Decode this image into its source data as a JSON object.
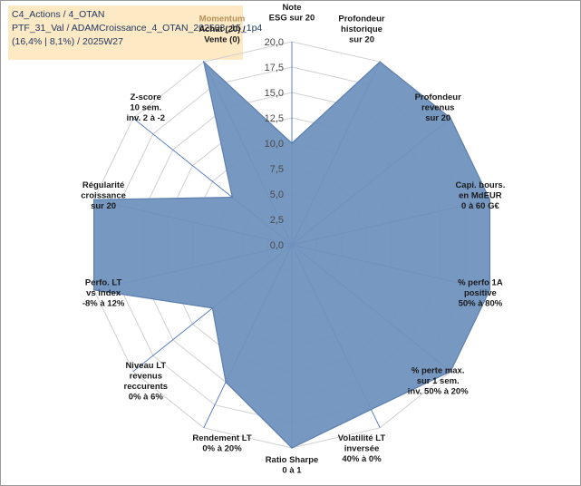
{
  "header": {
    "line1": "C4_Actions / 4_OTAN",
    "line2": "PTF_31_Val / ADAMCroissance_4_OTAN_202503_15_1p4",
    "line3": "(16,4% | 8,1%) / 2025W27"
  },
  "colors": {
    "fill": "#7092be",
    "stroke": "#5c7fb0",
    "grid": "#d0d0d0",
    "spoke": "#4472c4",
    "highlight_label": "#b7915a",
    "info_bg": "#fde9c4"
  },
  "chart_data": {
    "type": "radar",
    "title": "",
    "rmin": 0,
    "rmax": 20,
    "rstep": 2.5,
    "tick_labels": [
      "0,0",
      "2,5",
      "5,0",
      "7,5",
      "10,0",
      "12,5",
      "15,0",
      "17,5",
      "20,0"
    ],
    "grid": true,
    "categories": [
      {
        "label": [
          "Note",
          "ESG sur 20"
        ],
        "value": 10.0
      },
      {
        "label": [
          "Profondeur",
          "historique",
          "sur 20"
        ],
        "value": 20.0
      },
      {
        "label": [
          "Profondeur",
          "revenus",
          "sur 20"
        ],
        "value": 20.0
      },
      {
        "label": [
          "Capi. bours.",
          "en MdEUR",
          "0 à 60 G€"
        ],
        "value": 20.0
      },
      {
        "label": [
          "% perfo 1A",
          "positive",
          "50% à 80%"
        ],
        "value": 20.0
      },
      {
        "label": [
          "% perte max.",
          "sur 1 sem.",
          "inv. 50% à 20%"
        ],
        "value": 20.0
      },
      {
        "label": [
          "Volatilité LT",
          "inversée",
          "40% à 0%"
        ],
        "value": 18.0
      },
      {
        "label": [
          "Ratio Sharpe",
          "0 à 1"
        ],
        "value": 20.0
      },
      {
        "label": [
          "Rendement LT",
          "0% à 20%"
        ],
        "value": 15.0
      },
      {
        "label": [
          "Niveau LT",
          "revenus",
          "reccurents",
          "0% à 6%"
        ],
        "value": 10.0
      },
      {
        "label": [
          "Perfo. LT",
          "vs index",
          "-8% à 12%"
        ],
        "value": 20.0
      },
      {
        "label": [
          "Régularité",
          "croissance",
          "sur 20"
        ],
        "value": 20.0
      },
      {
        "label": [
          "Z-score",
          "10 sem.",
          "inv. 2 à -2"
        ],
        "value": 7.5
      },
      {
        "label": [
          "Momentum",
          "Achat (20) /",
          "Vente (0)"
        ],
        "label_highlight_first": true,
        "value": 20.0
      }
    ]
  }
}
